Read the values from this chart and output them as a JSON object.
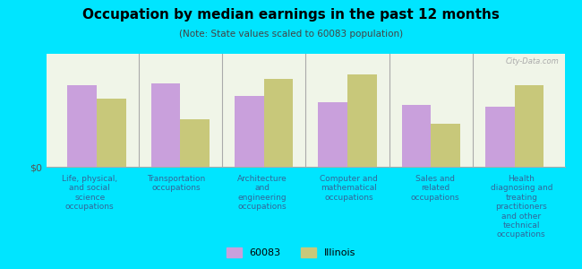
{
  "title": "Occupation by median earnings in the past 12 months",
  "subtitle": "(Note: State values scaled to 60083 population)",
  "categories": [
    "Life, physical,\nand social\nscience\noccupations",
    "Transportation\noccupations",
    "Architecture\nand\nengineering\noccupations",
    "Computer and\nmathematical\noccupations",
    "Sales and\nrelated\noccupations",
    "Health\ndiagnosing and\ntreating\npractitioners\nand other\ntechnical\noccupations"
  ],
  "values_60083": [
    0.72,
    0.74,
    0.63,
    0.57,
    0.55,
    0.53
  ],
  "values_illinois": [
    0.6,
    0.42,
    0.78,
    0.82,
    0.38,
    0.72
  ],
  "color_60083": "#c9a0dc",
  "color_illinois": "#c8c87a",
  "background_color": "#00e5ff",
  "chart_bg_color": "#f0f5e8",
  "ylabel": "$0",
  "legend_label_60083": "60083",
  "legend_label_illinois": "Illinois",
  "bar_width": 0.35,
  "watermark": "City-Data.com"
}
